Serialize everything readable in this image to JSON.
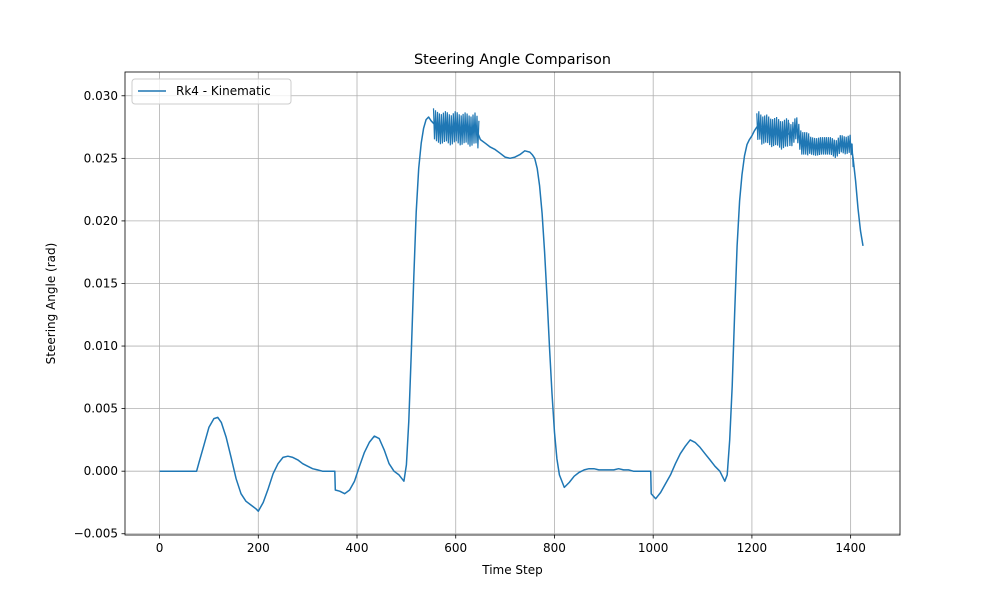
{
  "chart_data": {
    "type": "line",
    "title": "Steering Angle Comparison",
    "xlabel": "Time Step",
    "ylabel": "Steering Angle (rad)",
    "xlim": [
      -70,
      1500
    ],
    "ylim": [
      -0.0051,
      0.0319
    ],
    "x_ticks": [
      0,
      200,
      400,
      600,
      800,
      1000,
      1200,
      1400
    ],
    "x_tick_labels": [
      "0",
      "200",
      "400",
      "600",
      "800",
      "1000",
      "1200",
      "1400"
    ],
    "y_ticks": [
      -0.005,
      0.0,
      0.005,
      0.01,
      0.015,
      0.02,
      0.025,
      0.03
    ],
    "y_tick_labels": [
      "−0.005",
      "0.000",
      "0.005",
      "0.010",
      "0.015",
      "0.020",
      "0.025",
      "0.030"
    ],
    "grid": true,
    "legend_position": "top-left",
    "series": [
      {
        "name": "Rk4 - Kinematic",
        "color": "#1f77b4",
        "x": [
          0,
          75,
          80,
          90,
          100,
          110,
          118,
          125,
          135,
          145,
          155,
          165,
          175,
          185,
          195,
          200,
          210,
          220,
          230,
          240,
          250,
          260,
          270,
          280,
          290,
          300,
          310,
          320,
          330,
          355,
          356,
          365,
          375,
          385,
          395,
          405,
          415,
          425,
          435,
          445,
          455,
          465,
          475,
          485,
          495,
          500,
          505,
          510,
          515,
          520,
          525,
          530,
          535,
          540,
          545,
          550,
          555,
          560,
          570,
          580,
          590,
          600,
          610,
          620,
          630,
          640,
          650,
          660,
          670,
          680,
          690,
          700,
          710,
          720,
          730,
          740,
          750,
          755,
          760,
          765,
          770,
          775,
          780,
          785,
          790,
          795,
          800,
          805,
          810,
          820,
          830,
          840,
          850,
          860,
          870,
          880,
          890,
          900,
          910,
          920,
          930,
          940,
          950,
          960,
          970,
          980,
          990,
          995,
          996,
          1005,
          1015,
          1025,
          1035,
          1045,
          1055,
          1065,
          1075,
          1085,
          1095,
          1105,
          1115,
          1125,
          1135,
          1140,
          1145,
          1150,
          1155,
          1160,
          1165,
          1170,
          1175,
          1180,
          1185,
          1190,
          1195,
          1200,
          1205,
          1210,
          1215,
          1220,
          1230,
          1240,
          1250,
          1260,
          1270,
          1280,
          1290,
          1300,
          1310,
          1320,
          1330,
          1340,
          1350,
          1360,
          1370,
          1380,
          1390,
          1400,
          1405,
          1410,
          1415,
          1420,
          1425
        ],
        "y": [
          0.0,
          0.0,
          0.0007,
          0.0021,
          0.0035,
          0.0042,
          0.0043,
          0.0039,
          0.0027,
          0.0011,
          -0.0006,
          -0.0018,
          -0.0024,
          -0.0027,
          -0.003,
          -0.0032,
          -0.0025,
          -0.0014,
          -0.0002,
          0.0006,
          0.0011,
          0.0012,
          0.0011,
          0.0009,
          0.0006,
          0.0004,
          0.0002,
          0.0001,
          0.0,
          0.0,
          -0.0015,
          -0.0016,
          -0.0018,
          -0.0015,
          -0.0008,
          0.0004,
          0.0015,
          0.0023,
          0.0028,
          0.0026,
          0.0017,
          0.0006,
          0.0,
          -0.0003,
          -0.0008,
          0.0005,
          0.004,
          0.0095,
          0.0155,
          0.0207,
          0.0242,
          0.0262,
          0.0274,
          0.0281,
          0.0283,
          0.028,
          0.0278,
          0.0276,
          0.0273,
          0.0276,
          0.0272,
          0.0276,
          0.0272,
          0.0275,
          0.0271,
          0.0275,
          0.0265,
          0.0262,
          0.0259,
          0.0257,
          0.0254,
          0.0251,
          0.025,
          0.0251,
          0.0253,
          0.0256,
          0.0255,
          0.0253,
          0.025,
          0.0242,
          0.0228,
          0.0206,
          0.0175,
          0.0138,
          0.0099,
          0.0062,
          0.0031,
          0.001,
          -0.0003,
          -0.0013,
          -0.0009,
          -0.0004,
          -0.0001,
          0.0001,
          0.0002,
          0.0002,
          0.0001,
          0.0001,
          0.0001,
          0.0001,
          0.0002,
          0.0001,
          0.0001,
          0.0,
          0.0,
          0.0,
          0.0,
          0.0,
          -0.0018,
          -0.0022,
          -0.0017,
          -0.001,
          -0.0003,
          0.0006,
          0.0014,
          0.002,
          0.0025,
          0.0023,
          0.0019,
          0.0014,
          0.0009,
          0.0004,
          0.0,
          -0.0004,
          -0.0008,
          -0.0003,
          0.0025,
          0.0068,
          0.0125,
          0.018,
          0.0216,
          0.0237,
          0.0252,
          0.0261,
          0.0265,
          0.0268,
          0.0272,
          0.0275,
          0.0277,
          0.0272,
          0.0274,
          0.027,
          0.0272,
          0.0268,
          0.0271,
          0.0268,
          0.0275,
          0.0262,
          0.0262,
          0.026,
          0.0259,
          0.026,
          0.026,
          0.026,
          0.0257,
          0.0262,
          0.026,
          0.0262,
          0.025,
          0.0232,
          0.021,
          0.0192,
          0.018
        ]
      }
    ]
  }
}
